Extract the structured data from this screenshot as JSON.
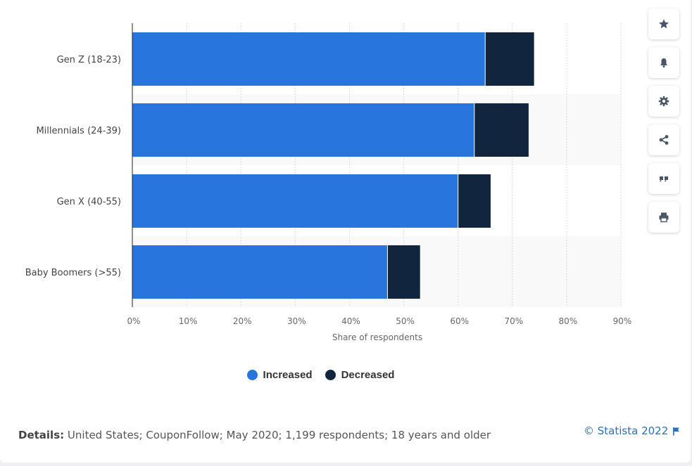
{
  "chart_data": {
    "type": "bar",
    "orientation": "horizontal",
    "stacked": true,
    "categories": [
      "Gen Z (18-23)",
      "Millennials (24-39)",
      "Gen X (40-55)",
      "Baby Boomers (>55)"
    ],
    "series": [
      {
        "name": "Increased",
        "values": [
          65,
          63,
          60,
          47
        ],
        "color": "#2876dd"
      },
      {
        "name": "Decreased",
        "values": [
          9,
          10,
          6,
          6
        ],
        "color": "#11253e"
      }
    ],
    "xlabel": "Share of respondents",
    "ylabel": "",
    "xlim": [
      0,
      90
    ],
    "ticks": [
      "0%",
      "10%",
      "20%",
      "30%",
      "40%",
      "50%",
      "60%",
      "70%",
      "80%",
      "90%"
    ],
    "grid": true,
    "legend_position": "bottom"
  },
  "toolbar": {
    "items": [
      {
        "icon": "star-icon"
      },
      {
        "icon": "bell-icon"
      },
      {
        "icon": "gear-icon"
      },
      {
        "icon": "share-icon"
      },
      {
        "icon": "quote-icon"
      },
      {
        "icon": "print-icon"
      }
    ]
  },
  "footer": {
    "details_label": "Details:",
    "details_text": "United States; CouponFollow; May 2020; 1,199 respondents; 18 years and older",
    "copyright": "© Statista 2022"
  },
  "colors": {
    "accent": "#2876dd",
    "dark": "#11253e",
    "link": "#2c6fb7"
  }
}
